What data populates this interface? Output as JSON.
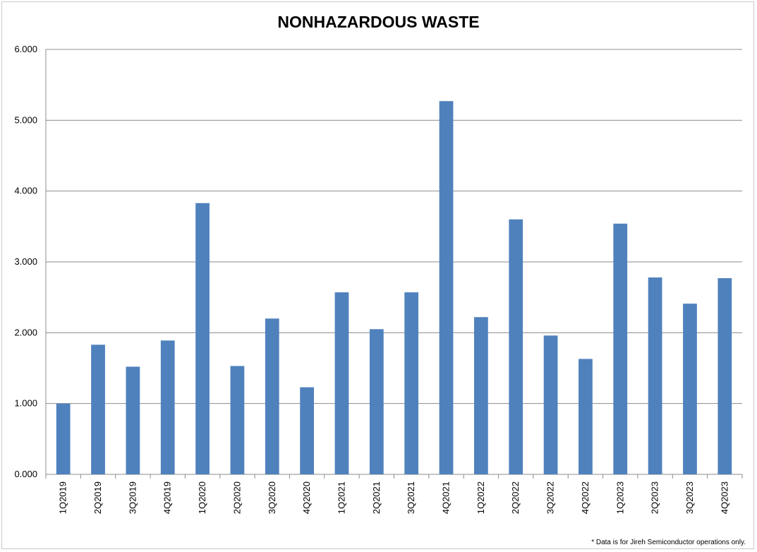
{
  "chart_data": {
    "type": "bar",
    "title": "NONHAZARDOUS WASTE",
    "xlabel": "",
    "ylabel": "",
    "categories": [
      "1Q2019",
      "2Q2019",
      "3Q2019",
      "4Q2019",
      "1Q2020",
      "2Q2020",
      "3Q2020",
      "4Q2020",
      "1Q2021",
      "2Q2021",
      "3Q2021",
      "4Q2021",
      "1Q2022",
      "2Q2022",
      "3Q2022",
      "4Q2022",
      "1Q2023",
      "2Q2023",
      "3Q2023",
      "4Q2023"
    ],
    "values": [
      1.0,
      1.83,
      1.52,
      1.89,
      3.83,
      1.53,
      2.2,
      1.23,
      2.57,
      2.05,
      2.57,
      5.27,
      2.22,
      3.6,
      1.96,
      1.63,
      3.54,
      2.78,
      2.41,
      2.77
    ],
    "ylim": [
      0,
      6
    ],
    "yticks": [
      "0.000",
      "1.000",
      "2.000",
      "3.000",
      "4.000",
      "5.000",
      "6.000"
    ],
    "grid": true,
    "bar_color": "#4f81bd",
    "footnote": "* Data is for Jireh Semiconductor operations only."
  }
}
